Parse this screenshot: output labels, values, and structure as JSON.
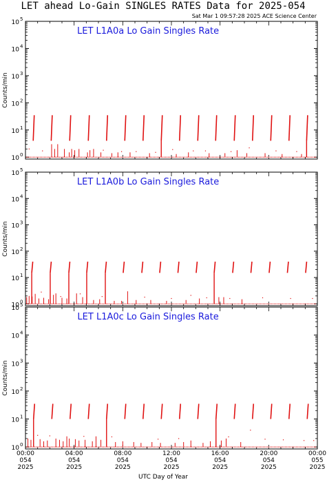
{
  "page": {
    "title": "LET ahead Lo-Gain SINGLES RATES Data for 2025-054",
    "timestamp": "Sat Mar  1 09:57:28 2025 ACE Science Center"
  },
  "colors": {
    "data": "#e01010",
    "panel_label": "#1a1adc",
    "axes": "#000000"
  },
  "axes": {
    "ylabel": "Counts/min",
    "xlabel": "UTC Day of Year",
    "y_scale": "log",
    "ylim": [
      0.85,
      100000
    ],
    "y_major_ticks": [
      {
        "base": "10",
        "exp": "0"
      },
      {
        "base": "10",
        "exp": "1"
      },
      {
        "base": "10",
        "exp": "2"
      },
      {
        "base": "10",
        "exp": "3"
      },
      {
        "base": "10",
        "exp": "4"
      },
      {
        "base": "10",
        "exp": "5"
      }
    ],
    "xlim": [
      0,
      24
    ],
    "x_tick_labels": [
      {
        "time": "00:00",
        "doy": "054",
        "year": "2025"
      },
      {
        "time": "04:00",
        "doy": "054",
        "year": "2025"
      },
      {
        "time": "08:00",
        "doy": "054",
        "year": "2025"
      },
      {
        "time": "12:00",
        "doy": "054",
        "year": "2025"
      },
      {
        "time": "16:00",
        "doy": "054",
        "year": "2025"
      },
      {
        "time": "20:00",
        "doy": "054",
        "year": "2025"
      },
      {
        "time": "00:00",
        "doy": "055",
        "year": "2025"
      }
    ]
  },
  "chart_data": [
    {
      "type": "scatter",
      "title": "LET L1A0a Lo Gain Singles Rate",
      "periodic_hours": [
        0.72,
        2.2,
        3.72,
        5.25,
        6.75,
        8.25,
        9.75,
        11.25,
        12.75,
        14.25,
        15.72,
        17.25,
        18.75,
        20.25,
        21.75,
        23.2
      ],
      "burst_hours": [
        11.25,
        23.2
      ],
      "peak_value": 35,
      "low_value": 4,
      "spike_hours": [
        2.15,
        2.4,
        2.65,
        3.2,
        3.6,
        3.8,
        4.05,
        4.4,
        5.1,
        5.3,
        5.6,
        6.2,
        7.1,
        7.6,
        8.6,
        10.2,
        12.4,
        13.4,
        15.1,
        16.4,
        17.4,
        18.2,
        19.7,
        21.1,
        22.7
      ],
      "spike_values": [
        3,
        2,
        3,
        2,
        1.5,
        2,
        1.8,
        2,
        1.5,
        1.8,
        2,
        1.5,
        1.4,
        1.5,
        1.5,
        1.4,
        1.3,
        1.5,
        1.4,
        1.4,
        1.8,
        1.4,
        1.4,
        1.3,
        1.3
      ],
      "sparse_points": [
        [
          0.3,
          2.0
        ],
        [
          1.4,
          1.7
        ],
        [
          6.4,
          1.8
        ],
        [
          7.9,
          1.6
        ],
        [
          9.1,
          1.6
        ],
        [
          10.7,
          1.5
        ],
        [
          12.1,
          1.9
        ],
        [
          13.8,
          1.7
        ],
        [
          14.8,
          1.7
        ],
        [
          16.9,
          1.6
        ],
        [
          18.4,
          2.2
        ],
        [
          20.6,
          1.7
        ],
        [
          22.3,
          1.6
        ]
      ]
    },
    {
      "type": "scatter",
      "title": "LET L1A0b Lo Gain Singles Rate",
      "periodic_hours": [
        0.6,
        2.12,
        3.65,
        5.12,
        6.65,
        8.12,
        9.65,
        11.12,
        12.62,
        14.12,
        15.6,
        17.12,
        18.62,
        20.12,
        21.62,
        23.12
      ],
      "burst_hours": [
        0.6,
        2.12,
        3.65,
        5.12,
        6.65,
        15.6
      ],
      "peak_value": 40,
      "low_value": 15,
      "spike_hours": [
        0.1,
        0.3,
        0.55,
        0.8,
        1.1,
        1.5,
        1.9,
        2.3,
        2.5,
        3.0,
        3.4,
        4.2,
        4.7,
        5.6,
        6.1,
        7.3,
        7.9,
        8.4,
        9.1,
        10.3,
        11.6,
        13.2,
        14.3,
        15.9,
        16.3,
        17.8
      ],
      "spike_values": [
        1.8,
        2.0,
        1.9,
        2.4,
        1.6,
        1.7,
        1.5,
        2.2,
        2.5,
        1.7,
        1.6,
        2.5,
        1.8,
        1.4,
        1.5,
        1.3,
        1.3,
        3.0,
        1.4,
        1.4,
        1.3,
        1.4,
        1.6,
        1.8,
        1.8,
        1.5
      ],
      "sparse_points": [
        [
          1.3,
          2.8
        ],
        [
          2.9,
          1.9
        ],
        [
          4.5,
          2.4
        ],
        [
          6.3,
          1.9
        ],
        [
          9.8,
          1.8
        ],
        [
          12.0,
          1.6
        ],
        [
          13.6,
          2.1
        ],
        [
          14.9,
          1.7
        ],
        [
          16.8,
          1.6
        ],
        [
          19.5,
          1.7
        ],
        [
          21.8,
          1.6
        ],
        [
          23.6,
          1.6
        ]
      ]
    },
    {
      "type": "scatter",
      "title": "LET L1A0c Lo Gain Singles Rate",
      "periodic_hours": [
        0.75,
        2.25,
        3.75,
        5.25,
        6.75,
        8.25,
        9.75,
        11.25,
        12.75,
        14.25,
        15.75,
        17.25,
        18.75,
        20.25,
        21.75,
        23.25
      ],
      "burst_hours": [
        0.75,
        6.75,
        15.75
      ],
      "peak_value": 35,
      "low_value": 10,
      "spike_hours": [
        0.2,
        0.45,
        1.2,
        1.5,
        1.8,
        2.5,
        2.8,
        3.1,
        3.4,
        3.6,
        4.1,
        4.4,
        4.9,
        5.5,
        5.8,
        6.2,
        7.4,
        8.0,
        8.9,
        9.5,
        10.4,
        11.1,
        12.3,
        13.0,
        13.6,
        14.6,
        15.2,
        16.1,
        16.5,
        17.7
      ],
      "spike_values": [
        2.0,
        1.8,
        1.9,
        1.6,
        1.7,
        2.0,
        1.8,
        1.6,
        2.4,
        2.0,
        1.9,
        1.7,
        1.8,
        1.6,
        2.4,
        1.8,
        1.5,
        1.6,
        1.5,
        1.4,
        1.5,
        1.4,
        1.4,
        1.5,
        1.7,
        1.4,
        1.6,
        1.7,
        2.0,
        1.5
      ],
      "sparse_points": [
        [
          1.0,
          2.6
        ],
        [
          2.0,
          2.5
        ],
        [
          4.8,
          2.4
        ],
        [
          7.1,
          2.3
        ],
        [
          10.9,
          1.9
        ],
        [
          12.6,
          2.0
        ],
        [
          16.7,
          2.3
        ],
        [
          18.5,
          4.0
        ],
        [
          19.7,
          1.9
        ],
        [
          21.2,
          1.8
        ],
        [
          22.9,
          1.7
        ],
        [
          23.7,
          1.7
        ]
      ]
    }
  ]
}
